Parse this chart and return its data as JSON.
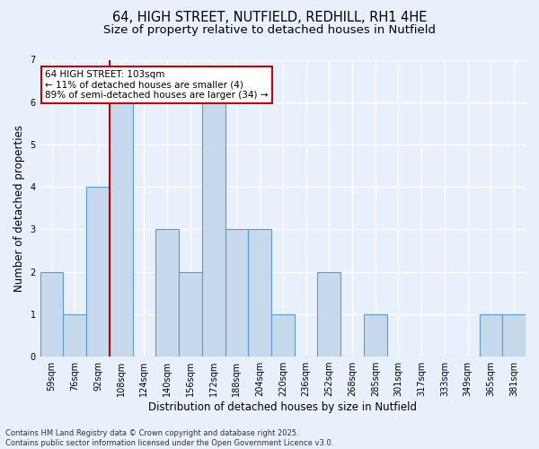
{
  "title_line1": "64, HIGH STREET, NUTFIELD, REDHILL, RH1 4HE",
  "title_line2": "Size of property relative to detached houses in Nutfield",
  "xlabel": "Distribution of detached houses by size in Nutfield",
  "ylabel": "Number of detached properties",
  "categories": [
    "59sqm",
    "76sqm",
    "92sqm",
    "108sqm",
    "124sqm",
    "140sqm",
    "156sqm",
    "172sqm",
    "188sqm",
    "204sqm",
    "220sqm",
    "236sqm",
    "252sqm",
    "268sqm",
    "285sqm",
    "301sqm",
    "317sqm",
    "333sqm",
    "349sqm",
    "365sqm",
    "381sqm"
  ],
  "values": [
    2,
    1,
    4,
    6,
    0,
    3,
    2,
    6,
    3,
    3,
    1,
    0,
    2,
    0,
    1,
    0,
    0,
    0,
    0,
    1,
    1
  ],
  "bar_color": "#c7d9ed",
  "bar_edge_color": "#5b9bd5",
  "red_line_x": 2.5,
  "annotation_text": "64 HIGH STREET: 103sqm\n← 11% of detached houses are smaller (4)\n89% of semi-detached houses are larger (34) →",
  "annotation_box_color": "#ffffff",
  "annotation_box_edge": "#cc0000",
  "ylim": [
    0,
    7
  ],
  "yticks": [
    0,
    1,
    2,
    3,
    4,
    5,
    6,
    7
  ],
  "footer": "Contains HM Land Registry data © Crown copyright and database right 2025.\nContains public sector information licensed under the Open Government Licence v3.0.",
  "bg_color": "#e8f0fc",
  "plot_bg_color": "#e8f0fc",
  "grid_color": "#ffffff",
  "title_fontsize": 10.5,
  "subtitle_fontsize": 9.5,
  "axis_label_fontsize": 8.5,
  "tick_fontsize": 7,
  "annotation_fontsize": 7.5
}
